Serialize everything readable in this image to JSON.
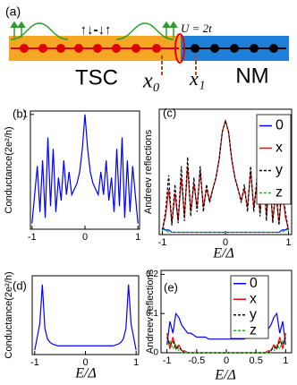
{
  "diagram": {
    "panel": "(a)",
    "interaction": "U = 2t",
    "spins": "↑↓-↓↑",
    "left_region": "TSC",
    "right_region": "NM",
    "x0": "x₀",
    "x1": "x₁"
  },
  "chart_data": [
    {
      "type": "line",
      "label": "(b)",
      "ylabel": "Conductance(2e²/h)",
      "x": [
        -1,
        -0.95,
        -0.9,
        -0.85,
        -0.8,
        -0.75,
        -0.7,
        -0.65,
        -0.6,
        -0.55,
        -0.5,
        -0.45,
        -0.4,
        -0.35,
        -0.3,
        -0.25,
        -0.2,
        -0.15,
        -0.1,
        -0.05,
        0,
        0.05,
        0.1,
        0.15,
        0.2,
        0.25,
        0.3,
        0.35,
        0.4,
        0.45,
        0.5,
        0.55,
        0.6,
        0.65,
        0.7,
        0.75,
        0.8,
        0.85,
        0.9,
        0.95,
        1
      ],
      "xlim": [
        -1.03,
        1.03
      ],
      "xticks": [
        -1,
        0,
        1
      ],
      "ylim": [
        0,
        1.03
      ],
      "yticks": [
        1
      ],
      "series": [
        {
          "color": "#0000ff",
          "values": [
            0.05,
            0.3,
            0.55,
            0.15,
            0.6,
            0.1,
            0.8,
            0.2,
            0.7,
            0.15,
            0.45,
            0.25,
            0.6,
            0.3,
            0.5,
            0.3,
            0.35,
            0.4,
            0.5,
            0.7,
            1.0,
            0.7,
            0.5,
            0.4,
            0.35,
            0.3,
            0.5,
            0.3,
            0.6,
            0.25,
            0.45,
            0.15,
            0.7,
            0.2,
            0.8,
            0.1,
            0.6,
            0.15,
            0.55,
            0.3,
            0.05
          ]
        }
      ]
    },
    {
      "type": "line",
      "label": "(c)",
      "ylabel": "Andreev reflections",
      "xlabel": "E/Δ",
      "legend": "upper right",
      "x": [
        -1,
        -0.95,
        -0.9,
        -0.85,
        -0.8,
        -0.75,
        -0.7,
        -0.65,
        -0.6,
        -0.55,
        -0.5,
        -0.45,
        -0.4,
        -0.35,
        -0.3,
        -0.25,
        -0.2,
        -0.15,
        -0.1,
        -0.05,
        0,
        0.05,
        0.1,
        0.15,
        0.2,
        0.25,
        0.3,
        0.35,
        0.4,
        0.45,
        0.5,
        0.55,
        0.6,
        0.65,
        0.7,
        0.75,
        0.8,
        0.85,
        0.9,
        0.95,
        1
      ],
      "xlim": [
        -1.05,
        1.05
      ],
      "xticks": [
        -1,
        0,
        1
      ],
      "ylim": [
        0,
        0.55
      ],
      "series": [
        {
          "name": "0",
          "color": "#0000ff",
          "values": [
            0.03,
            0.02,
            0.02,
            0.01,
            0.01,
            0.01,
            0.01,
            0.01,
            0.01,
            0.01,
            0.01,
            0.01,
            0.01,
            0.01,
            0.01,
            0.01,
            0.01,
            0.01,
            0.01,
            0.01,
            0.01,
            0.01,
            0.01,
            0.01,
            0.01,
            0.01,
            0.01,
            0.01,
            0.01,
            0.01,
            0.01,
            0.01,
            0.01,
            0.01,
            0.01,
            0.01,
            0.01,
            0.01,
            0.02,
            0.02,
            0.03
          ]
        },
        {
          "name": "x",
          "color": "#ff0000",
          "values": [
            0.02,
            0.08,
            0.2,
            0.05,
            0.18,
            0.06,
            0.25,
            0.08,
            0.3,
            0.1,
            0.22,
            0.12,
            0.28,
            0.12,
            0.2,
            0.15,
            0.2,
            0.25,
            0.33,
            0.45,
            0.5,
            0.45,
            0.33,
            0.25,
            0.2,
            0.15,
            0.2,
            0.12,
            0.28,
            0.12,
            0.22,
            0.1,
            0.3,
            0.08,
            0.25,
            0.06,
            0.18,
            0.05,
            0.2,
            0.08,
            0.02
          ]
        },
        {
          "name": "y",
          "color": "#000000",
          "dashed": true,
          "values": [
            0.02,
            0.1,
            0.26,
            0.04,
            0.22,
            0.05,
            0.3,
            0.06,
            0.34,
            0.08,
            0.25,
            0.1,
            0.3,
            0.1,
            0.22,
            0.14,
            0.2,
            0.25,
            0.33,
            0.45,
            0.5,
            0.45,
            0.33,
            0.25,
            0.2,
            0.14,
            0.22,
            0.1,
            0.3,
            0.1,
            0.25,
            0.08,
            0.34,
            0.06,
            0.3,
            0.05,
            0.22,
            0.04,
            0.26,
            0.1,
            0.02
          ]
        },
        {
          "name": "z",
          "color": "#00cc00",
          "dashed": true,
          "values": [
            0.02,
            0.02,
            0.01,
            0.01,
            0.01,
            0.01,
            0.01,
            0.01,
            0.01,
            0.01,
            0.01,
            0.01,
            0.01,
            0.01,
            0.01,
            0.01,
            0.01,
            0.01,
            0.01,
            0.01,
            0.01,
            0.01,
            0.01,
            0.01,
            0.01,
            0.01,
            0.01,
            0.01,
            0.01,
            0.01,
            0.01,
            0.01,
            0.01,
            0.01,
            0.01,
            0.01,
            0.01,
            0.01,
            0.01,
            0.02,
            0.02
          ]
        }
      ]
    },
    {
      "type": "line",
      "label": "(d)",
      "ylabel": "Conductance(2e²/h)",
      "xlabel": "E/Δ",
      "x": [
        -1,
        -0.95,
        -0.9,
        -0.85,
        -0.8,
        -0.75,
        -0.7,
        -0.65,
        -0.6,
        -0.55,
        -0.5,
        -0.45,
        -0.4,
        -0.35,
        -0.3,
        -0.25,
        -0.2,
        -0.15,
        -0.1,
        -0.05,
        0,
        0.05,
        0.1,
        0.15,
        0.2,
        0.25,
        0.3,
        0.35,
        0.4,
        0.45,
        0.5,
        0.55,
        0.6,
        0.65,
        0.7,
        0.75,
        0.8,
        0.85,
        0.9,
        0.95,
        1
      ],
      "xlim": [
        -1.05,
        1.05
      ],
      "xticks": [
        -1,
        0,
        1
      ],
      "ylim": [
        0,
        0.9
      ],
      "series": [
        {
          "color": "#0000ff",
          "values": [
            0.05,
            0.2,
            0.35,
            0.8,
            0.3,
            0.18,
            0.14,
            0.12,
            0.11,
            0.1,
            0.1,
            0.1,
            0.1,
            0.1,
            0.1,
            0.1,
            0.1,
            0.1,
            0.1,
            0.1,
            0.1,
            0.1,
            0.1,
            0.1,
            0.1,
            0.1,
            0.1,
            0.1,
            0.1,
            0.1,
            0.1,
            0.1,
            0.11,
            0.12,
            0.14,
            0.18,
            0.3,
            0.8,
            0.35,
            0.2,
            0.05
          ]
        }
      ]
    },
    {
      "type": "line",
      "label": "(e)",
      "ylabel": "Andreev reflections",
      "xlabel": "E/Δ",
      "legend": "upper right",
      "x": [
        -1,
        -0.95,
        -0.9,
        -0.85,
        -0.8,
        -0.75,
        -0.7,
        -0.65,
        -0.6,
        -0.55,
        -0.5,
        -0.45,
        -0.4,
        -0.35,
        -0.3,
        -0.25,
        -0.2,
        -0.15,
        -0.1,
        -0.05,
        0,
        0.05,
        0.1,
        0.15,
        0.2,
        0.25,
        0.3,
        0.35,
        0.4,
        0.45,
        0.5,
        0.55,
        0.6,
        0.65,
        0.7,
        0.75,
        0.8,
        0.85,
        0.9,
        0.95,
        1
      ],
      "xlim": [
        -1.1,
        1.1
      ],
      "xticks": [
        -1,
        -0.5,
        0,
        0.5,
        1
      ],
      "ylim": [
        0,
        0.21
      ],
      "yticks": [
        0,
        0.1,
        0.2
      ],
      "series": [
        {
          "name": "0",
          "color": "#0000ff",
          "values": [
            0.02,
            0.08,
            0.05,
            0.1,
            0.09,
            0.07,
            0.06,
            0.05,
            0.05,
            0.045,
            0.04,
            0.04,
            0.04,
            0.04,
            0.035,
            0.035,
            0.035,
            0.035,
            0.035,
            0.035,
            0.035,
            0.035,
            0.035,
            0.035,
            0.035,
            0.035,
            0.035,
            0.04,
            0.04,
            0.04,
            0.04,
            0.045,
            0.05,
            0.05,
            0.06,
            0.07,
            0.09,
            0.1,
            0.05,
            0.08,
            0.02
          ]
        },
        {
          "name": "x",
          "color": "#ff0000",
          "values": [
            0.05,
            0.01,
            0.04,
            0.01,
            0.02,
            0.005,
            0.005,
            0,
            0,
            0,
            0,
            0,
            0,
            0,
            0,
            0,
            0,
            0,
            0,
            0,
            0,
            0,
            0,
            0,
            0,
            0,
            0,
            0,
            0,
            0,
            0,
            0,
            0,
            0,
            0.005,
            0.005,
            0.02,
            0.01,
            0.04,
            0.01,
            0.05
          ]
        },
        {
          "name": "y",
          "color": "#000000",
          "dashed": true,
          "values": [
            0.04,
            0.02,
            0.03,
            0.01,
            0.015,
            0.005,
            0,
            0,
            0,
            0,
            0,
            0,
            0,
            0,
            0,
            0,
            0,
            0,
            0,
            0,
            0,
            0,
            0,
            0,
            0,
            0,
            0,
            0,
            0,
            0,
            0,
            0,
            0,
            0,
            0,
            0.005,
            0.015,
            0.01,
            0.03,
            0.02,
            0.04
          ]
        },
        {
          "name": "z",
          "color": "#00cc00",
          "dashed": true,
          "values": [
            0.02,
            0.03,
            0.01,
            0.02,
            0.005,
            0,
            0,
            0,
            0,
            0,
            0,
            0,
            0,
            0,
            0,
            0,
            0,
            0,
            0,
            0,
            0,
            0,
            0,
            0,
            0,
            0,
            0,
            0,
            0,
            0,
            0,
            0,
            0,
            0,
            0,
            0,
            0.005,
            0.02,
            0.01,
            0.03,
            0.02
          ]
        }
      ]
    }
  ]
}
